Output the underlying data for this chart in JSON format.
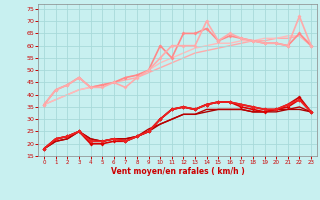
{
  "bg_color": "#c8f0f0",
  "grid_color": "#a8dada",
  "xlabel": "Vent moyen/en rafales ( km/h )",
  "xlabel_color": "#cc0000",
  "tick_color": "#cc0000",
  "xlim": [
    -0.5,
    23.5
  ],
  "ylim": [
    15,
    77
  ],
  "yticks": [
    15,
    20,
    25,
    30,
    35,
    40,
    45,
    50,
    55,
    60,
    65,
    70,
    75
  ],
  "xticks": [
    0,
    1,
    2,
    3,
    4,
    5,
    6,
    7,
    8,
    9,
    10,
    11,
    12,
    13,
    14,
    15,
    16,
    17,
    18,
    19,
    20,
    21,
    22,
    23
  ],
  "lines": [
    {
      "x": [
        0,
        1,
        2,
        3,
        4,
        5,
        6,
        7,
        8,
        9,
        10,
        11,
        12,
        13,
        14,
        15,
        16,
        17,
        18,
        19,
        20,
        21,
        22,
        23
      ],
      "y": [
        36,
        38,
        40,
        42,
        43,
        44,
        45,
        46,
        47,
        49,
        51,
        53,
        55,
        57,
        58,
        59,
        60,
        61,
        62,
        62,
        63,
        63,
        64,
        60
      ],
      "color": "#ffaaaa",
      "lw": 1.0,
      "marker": null,
      "ms": 0,
      "zorder": 1
    },
    {
      "x": [
        0,
        1,
        2,
        3,
        4,
        5,
        6,
        7,
        8,
        9,
        10,
        11,
        12,
        13,
        14,
        15,
        16,
        17,
        18,
        19,
        20,
        21,
        22,
        23
      ],
      "y": [
        36,
        38,
        40,
        42,
        43,
        44,
        45,
        47,
        48,
        50,
        53,
        55,
        57,
        59,
        60,
        61,
        61,
        62,
        62,
        63,
        63,
        64,
        64,
        61
      ],
      "color": "#ffbbbb",
      "lw": 1.0,
      "marker": null,
      "ms": 0,
      "zorder": 1
    },
    {
      "x": [
        0,
        1,
        2,
        3,
        4,
        5,
        6,
        7,
        8,
        9,
        10,
        11,
        12,
        13,
        14,
        15,
        16,
        17,
        18,
        19,
        20,
        21,
        22,
        23
      ],
      "y": [
        36,
        42,
        44,
        47,
        43,
        44,
        45,
        47,
        48,
        50,
        60,
        55,
        65,
        65,
        67,
        62,
        64,
        63,
        62,
        61,
        61,
        60,
        65,
        60
      ],
      "color": "#ff8888",
      "lw": 1.2,
      "marker": "D",
      "ms": 2.0,
      "zorder": 2
    },
    {
      "x": [
        0,
        1,
        2,
        3,
        4,
        5,
        6,
        7,
        8,
        9,
        10,
        11,
        12,
        13,
        14,
        15,
        16,
        17,
        18,
        19,
        20,
        21,
        22,
        23
      ],
      "y": [
        36,
        42,
        44,
        47,
        43,
        43,
        45,
        43,
        47,
        50,
        55,
        60,
        60,
        60,
        70,
        62,
        65,
        63,
        62,
        61,
        61,
        60,
        72,
        60
      ],
      "color": "#ffaaaa",
      "lw": 1.2,
      "marker": "D",
      "ms": 2.0,
      "zorder": 2
    },
    {
      "x": [
        0,
        1,
        2,
        3,
        4,
        5,
        6,
        7,
        8,
        9,
        10,
        11,
        12,
        13,
        14,
        15,
        16,
        17,
        18,
        19,
        20,
        21,
        22,
        23
      ],
      "y": [
        18,
        21,
        22,
        25,
        22,
        21,
        22,
        22,
        23,
        25,
        28,
        30,
        32,
        32,
        33,
        34,
        34,
        34,
        33,
        33,
        33,
        34,
        34,
        33
      ],
      "color": "#aa0000",
      "lw": 1.0,
      "marker": null,
      "ms": 0,
      "zorder": 3
    },
    {
      "x": [
        0,
        1,
        2,
        3,
        4,
        5,
        6,
        7,
        8,
        9,
        10,
        11,
        12,
        13,
        14,
        15,
        16,
        17,
        18,
        19,
        20,
        21,
        22,
        23
      ],
      "y": [
        18,
        21,
        22,
        25,
        22,
        21,
        22,
        22,
        23,
        26,
        28,
        30,
        32,
        32,
        34,
        34,
        34,
        34,
        33,
        33,
        34,
        34,
        35,
        33
      ],
      "color": "#bb0000",
      "lw": 1.0,
      "marker": null,
      "ms": 0,
      "zorder": 3
    },
    {
      "x": [
        0,
        1,
        2,
        3,
        4,
        5,
        6,
        7,
        8,
        9,
        10,
        11,
        12,
        13,
        14,
        15,
        16,
        17,
        18,
        19,
        20,
        21,
        22,
        23
      ],
      "y": [
        18,
        22,
        23,
        25,
        20,
        20,
        21,
        21,
        23,
        25,
        30,
        34,
        35,
        34,
        36,
        37,
        37,
        35,
        34,
        33,
        34,
        35,
        38,
        33
      ],
      "color": "#dd0000",
      "lw": 1.2,
      "marker": "D",
      "ms": 2.0,
      "zorder": 4
    },
    {
      "x": [
        0,
        1,
        2,
        3,
        4,
        5,
        6,
        7,
        8,
        9,
        10,
        11,
        12,
        13,
        14,
        15,
        16,
        17,
        18,
        19,
        20,
        21,
        22,
        23
      ],
      "y": [
        18,
        22,
        23,
        25,
        21,
        21,
        22,
        21,
        23,
        25,
        30,
        34,
        35,
        34,
        36,
        37,
        37,
        36,
        35,
        34,
        34,
        36,
        39,
        33
      ],
      "color": "#cc0000",
      "lw": 1.2,
      "marker": "D",
      "ms": 2.0,
      "zorder": 4
    },
    {
      "x": [
        0,
        1,
        2,
        3,
        4,
        5,
        6,
        7,
        8,
        9,
        10,
        11,
        12,
        13,
        14,
        15,
        16,
        17,
        18,
        19,
        20,
        21,
        22,
        23
      ],
      "y": [
        18,
        22,
        23,
        25,
        21,
        21,
        22,
        21,
        23,
        25,
        30,
        34,
        35,
        34,
        36,
        37,
        37,
        36,
        35,
        34,
        34,
        36,
        38,
        33
      ],
      "color": "#ee2222",
      "lw": 1.2,
      "marker": "D",
      "ms": 2.0,
      "zorder": 4
    }
  ]
}
